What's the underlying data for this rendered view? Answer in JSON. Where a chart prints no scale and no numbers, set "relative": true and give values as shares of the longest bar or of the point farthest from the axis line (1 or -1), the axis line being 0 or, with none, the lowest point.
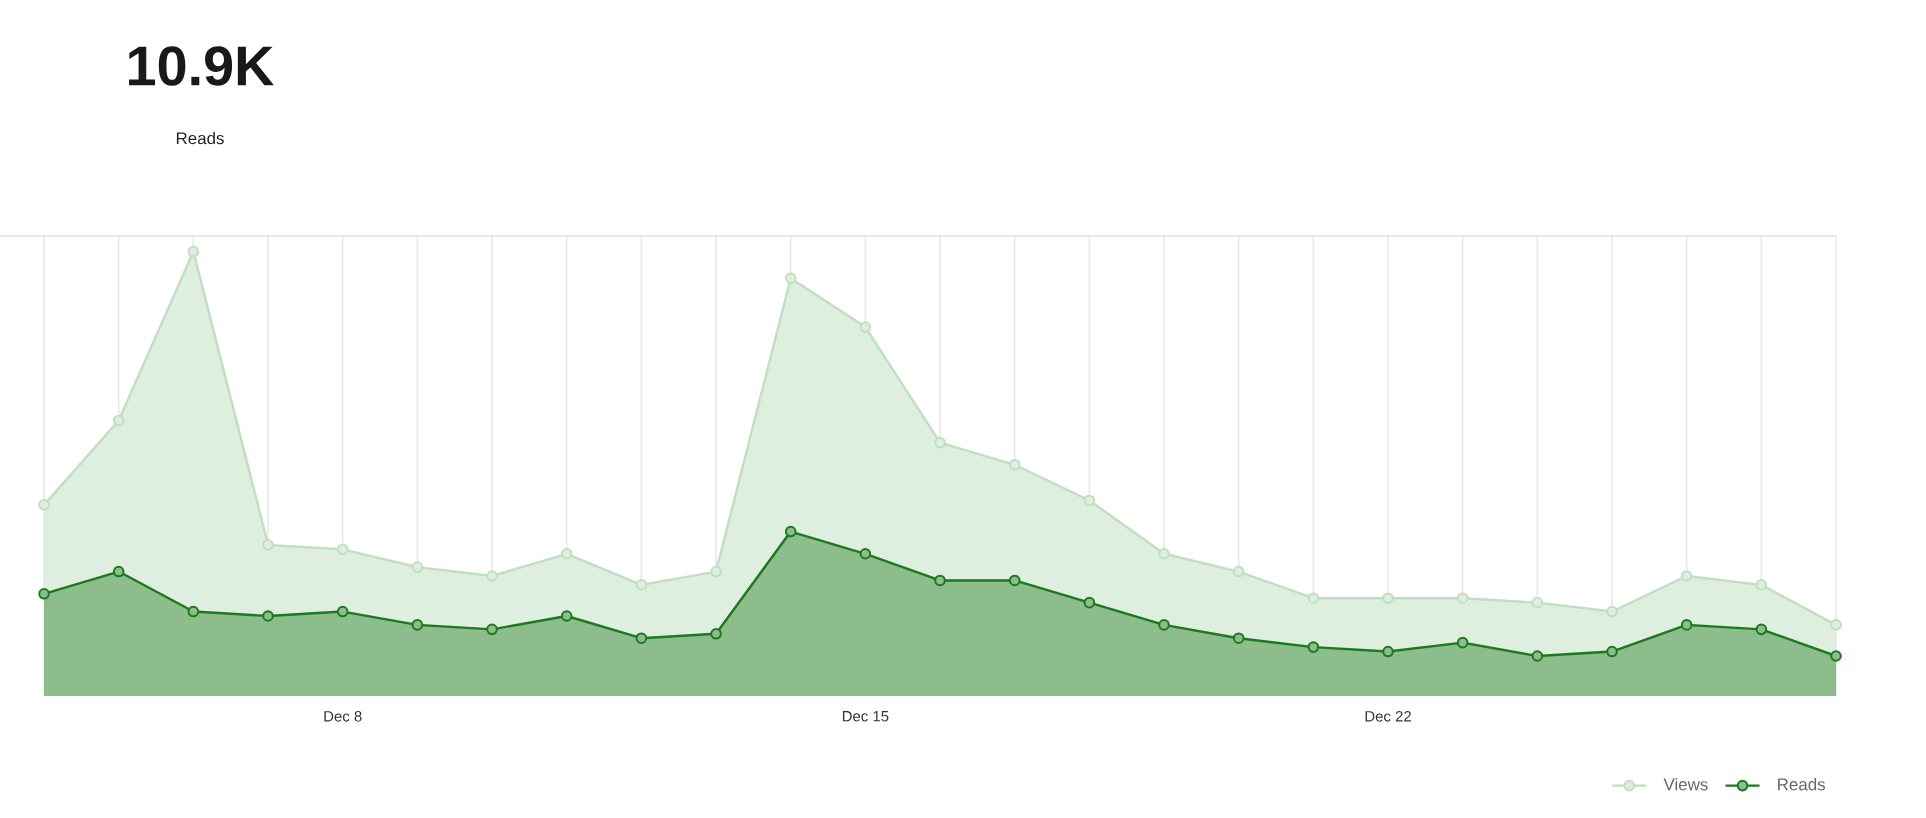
{
  "chart_data": {
    "type": "area",
    "title": "10.9K",
    "subtitle": "Reads",
    "relative": true,
    "categories": [
      null,
      null,
      null,
      null,
      "Dec 8",
      null,
      null,
      null,
      null,
      null,
      null,
      "Dec 15",
      null,
      null,
      null,
      null,
      null,
      null,
      "Dec 22",
      null,
      null,
      null,
      null,
      null,
      null
    ],
    "series": [
      {
        "name": "Views",
        "color": "#c0dfc0",
        "values": [
          0.43,
          0.62,
          1.0,
          0.34,
          0.33,
          0.29,
          0.27,
          0.32,
          0.25,
          0.28,
          0.94,
          0.83,
          0.57,
          0.52,
          0.44,
          0.32,
          0.28,
          0.22,
          0.22,
          0.22,
          0.21,
          0.19,
          0.27,
          0.25,
          0.16
        ]
      },
      {
        "name": "Reads",
        "color": "#1b7a1b",
        "values": [
          0.23,
          0.28,
          0.19,
          0.18,
          0.19,
          0.16,
          0.15,
          0.18,
          0.13,
          0.14,
          0.37,
          0.32,
          0.26,
          0.26,
          0.21,
          0.16,
          0.13,
          0.11,
          0.1,
          0.12,
          0.09,
          0.1,
          0.16,
          0.15,
          0.09
        ]
      }
    ],
    "grid": "x",
    "legend": "bottom right",
    "marker": "circle"
  }
}
